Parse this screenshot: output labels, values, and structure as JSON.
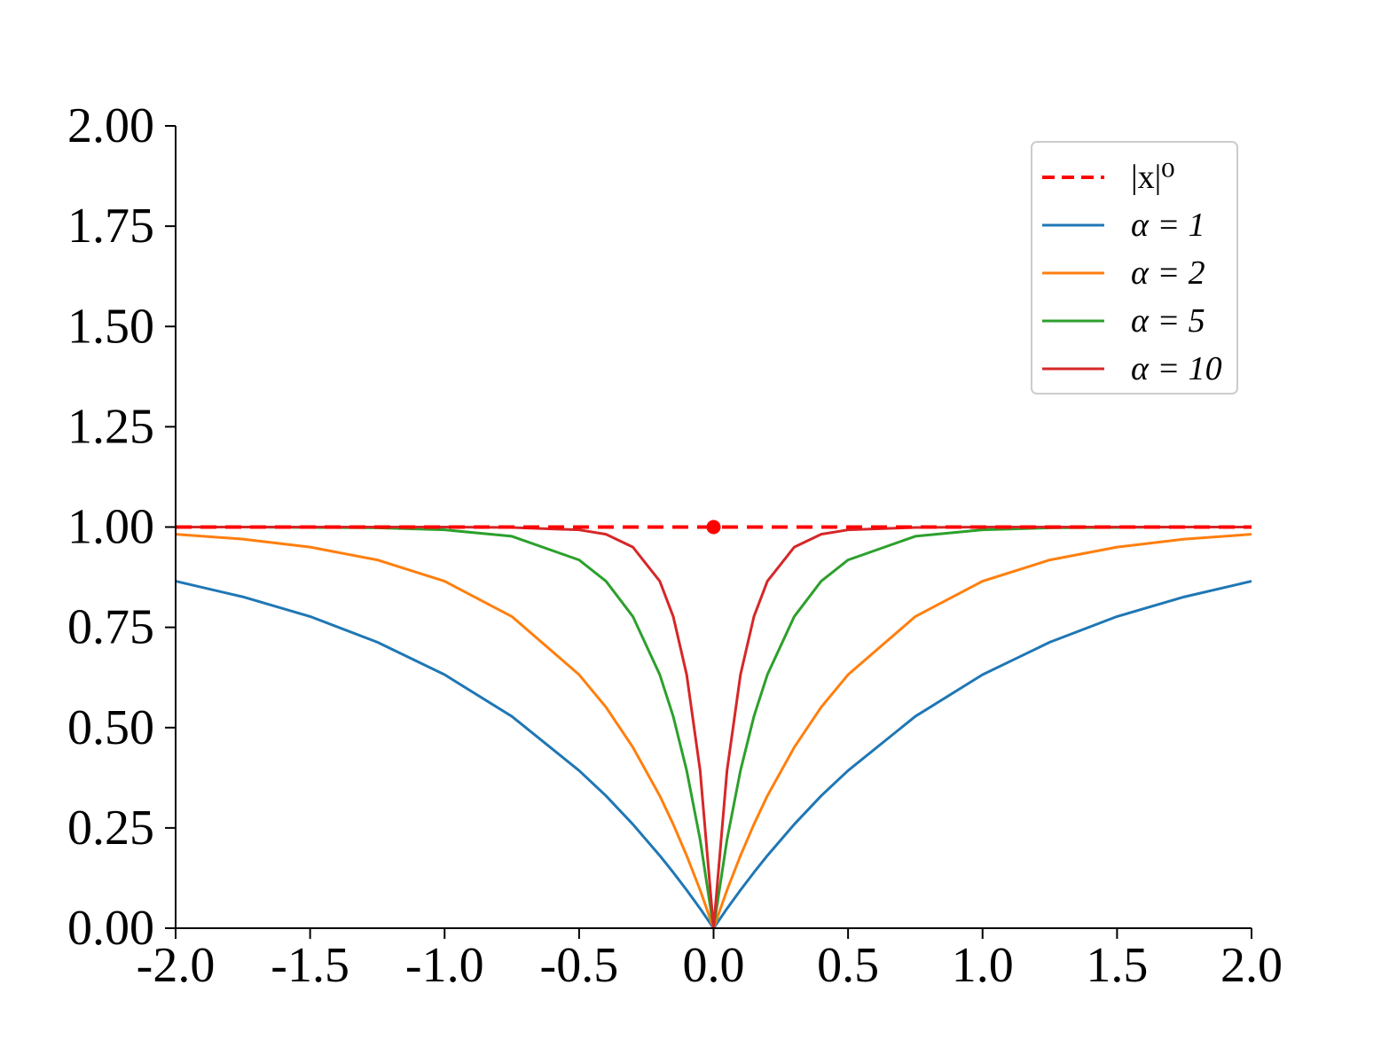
{
  "chart_data": {
    "type": "line",
    "title": "",
    "xlabel": "",
    "ylabel": "",
    "xlim": [
      -2.0,
      2.0
    ],
    "ylim": [
      0.0,
      2.0
    ],
    "x_ticks": [
      -2.0,
      -1.5,
      -1.0,
      -0.5,
      0.0,
      0.5,
      1.0,
      1.5,
      2.0
    ],
    "x_tick_labels": [
      "-2.0",
      "-1.5",
      "-1.0",
      "-0.5",
      "0.0",
      "0.5",
      "1.0",
      "1.5",
      "2.0"
    ],
    "y_ticks": [
      0.0,
      0.25,
      0.5,
      0.75,
      1.0,
      1.25,
      1.5,
      1.75,
      2.0
    ],
    "y_tick_labels": [
      "0.00",
      "0.25",
      "0.50",
      "0.75",
      "1.00",
      "1.25",
      "1.50",
      "1.75",
      "2.00"
    ],
    "grid": false,
    "legend_position": "top-right",
    "x": [
      -2.0,
      -1.75,
      -1.5,
      -1.25,
      -1.0,
      -0.75,
      -0.5,
      -0.4,
      -0.3,
      -0.2,
      -0.15,
      -0.1,
      -0.05,
      0.0,
      0.05,
      0.1,
      0.15,
      0.2,
      0.3,
      0.4,
      0.5,
      0.75,
      1.0,
      1.25,
      1.5,
      1.75,
      2.0
    ],
    "series": [
      {
        "name": "|x|⁰",
        "color": "#ff0000",
        "style": "dashed",
        "marker_at_x": 0.0,
        "values": [
          1.0,
          1.0,
          1.0,
          1.0,
          1.0,
          1.0,
          1.0,
          1.0,
          1.0,
          1.0,
          1.0,
          1.0,
          1.0,
          1.0,
          1.0,
          1.0,
          1.0,
          1.0,
          1.0,
          1.0,
          1.0,
          1.0,
          1.0,
          1.0,
          1.0,
          1.0,
          1.0
        ]
      },
      {
        "name": "α = 1",
        "color": "#1f77b4",
        "style": "solid",
        "values": [
          0.865,
          0.826,
          0.777,
          0.713,
          0.632,
          0.528,
          0.393,
          0.33,
          0.259,
          0.181,
          0.139,
          0.095,
          0.049,
          0.0,
          0.049,
          0.095,
          0.139,
          0.181,
          0.259,
          0.33,
          0.393,
          0.528,
          0.632,
          0.713,
          0.777,
          0.826,
          0.865
        ]
      },
      {
        "name": "α = 2",
        "color": "#ff7f0e",
        "style": "solid",
        "values": [
          0.982,
          0.97,
          0.95,
          0.918,
          0.865,
          0.777,
          0.632,
          0.551,
          0.451,
          0.33,
          0.259,
          0.181,
          0.095,
          0.0,
          0.095,
          0.181,
          0.259,
          0.33,
          0.451,
          0.551,
          0.632,
          0.777,
          0.865,
          0.918,
          0.95,
          0.97,
          0.982
        ]
      },
      {
        "name": "α = 5",
        "color": "#2ca02c",
        "style": "solid",
        "values": [
          1.0,
          1.0,
          0.999,
          0.998,
          0.993,
          0.977,
          0.918,
          0.865,
          0.777,
          0.632,
          0.528,
          0.393,
          0.221,
          0.0,
          0.221,
          0.393,
          0.528,
          0.632,
          0.777,
          0.865,
          0.918,
          0.977,
          0.993,
          0.998,
          0.999,
          1.0,
          1.0
        ]
      },
      {
        "name": "α = 10",
        "color": "#d62728",
        "style": "solid",
        "values": [
          1.0,
          1.0,
          1.0,
          1.0,
          1.0,
          0.999,
          0.993,
          0.982,
          0.95,
          0.865,
          0.777,
          0.632,
          0.393,
          0.0,
          0.393,
          0.632,
          0.777,
          0.865,
          0.95,
          0.982,
          0.993,
          0.999,
          1.0,
          1.0,
          1.0,
          1.0,
          1.0
        ]
      }
    ]
  }
}
